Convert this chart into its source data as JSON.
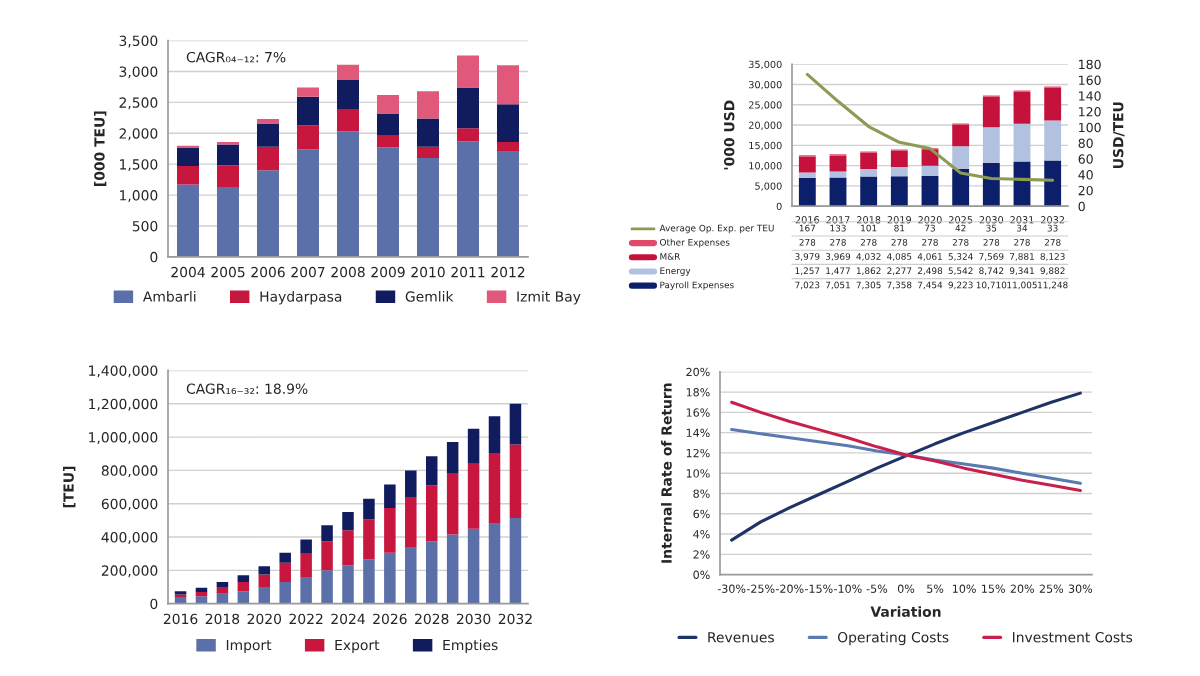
{
  "chart_data": [
    {
      "type": "bar",
      "stacked": true,
      "ylabel": "[000 TEU]",
      "annotations": [
        "CAGR₀₄₋₁₂: 7%"
      ],
      "grid": "y",
      "legend": "bottom",
      "categories": [
        "2004",
        "2005",
        "2006",
        "2007",
        "2008",
        "2009",
        "2010",
        "2011",
        "2012"
      ],
      "ylim": [
        0,
        3500
      ],
      "yticks": [
        0,
        500,
        {
          "value": 1000,
          "label": "1,000"
        },
        {
          "value": 1500,
          "label": "1,500"
        },
        {
          "value": 2000,
          "label": "2,000"
        },
        {
          "value": 2500,
          "label": "2,500"
        },
        {
          "value": 3000,
          "label": "3,000"
        },
        {
          "value": 3500,
          "label": "3,500"
        }
      ],
      "series": [
        {
          "name": "Ambarli",
          "color": "#5b6fa8",
          "values": [
            1170,
            1130,
            1400,
            1740,
            2030,
            1770,
            1600,
            1870,
            1700
          ]
        },
        {
          "name": "Haydarpasa",
          "color": "#c8173f",
          "values": [
            300,
            350,
            380,
            390,
            350,
            190,
            180,
            210,
            160
          ]
        },
        {
          "name": "Gemlik",
          "color": "#101c5e",
          "values": [
            300,
            340,
            380,
            460,
            480,
            360,
            460,
            660,
            610
          ]
        },
        {
          "name": "Izmit Bay",
          "color": "#e0587a",
          "values": [
            30,
            40,
            70,
            150,
            250,
            300,
            440,
            520,
            630
          ]
        }
      ]
    },
    {
      "type": "bar",
      "stacked": true,
      "ylabel": "'000 USD",
      "y2label": "USD/TEU",
      "grid": "y",
      "legend": "bottom",
      "categories": [
        "2016",
        "2017",
        "2018",
        "2019",
        "2020",
        "2025",
        "2030",
        "2031",
        "2032"
      ],
      "ylim": [
        0,
        35000
      ],
      "yticks": [
        0,
        {
          "value": 5000,
          "label": "5,000"
        },
        {
          "value": 10000,
          "label": "10,000"
        },
        {
          "value": 15000,
          "label": "15,000"
        },
        {
          "value": 20000,
          "label": "20,000"
        },
        {
          "value": 25000,
          "label": "25,000"
        },
        {
          "value": 30000,
          "label": "30,000"
        },
        {
          "value": 35000,
          "label": "35,000"
        }
      ],
      "y2lim": [
        0,
        180
      ],
      "y2ticks": [
        0,
        20,
        40,
        60,
        80,
        100,
        120,
        140,
        160,
        180
      ],
      "series": [
        {
          "name": "Payroll Expenses",
          "color": "#0c1f6b",
          "values": [
            7023,
            7051,
            7305,
            7358,
            7454,
            9223,
            10710,
            11005,
            11248
          ],
          "value_labels": [
            "7,023",
            "7,051",
            "7,305",
            "7,358",
            "7,454",
            "9,223",
            "10,710",
            "11,005",
            "11,248"
          ]
        },
        {
          "name": "Energy",
          "color": "#b3c1e0",
          "values": [
            1257,
            1477,
            1862,
            2277,
            2498,
            5542,
            8742,
            9341,
            9882
          ],
          "value_labels": [
            "1,257",
            "1,477",
            "1,862",
            "2,277",
            "2,498",
            "5,542",
            "8,742",
            "9,341",
            "9,882"
          ]
        },
        {
          "name": "M&R",
          "color": "#c4123c",
          "values": [
            3979,
            3969,
            4032,
            4085,
            4061,
            5324,
            7569,
            7881,
            8123
          ],
          "value_labels": [
            "3,979",
            "3,969",
            "4,032",
            "4,085",
            "4,061",
            "5,324",
            "7,569",
            "7,881",
            "8,123"
          ]
        },
        {
          "name": "Other Expenses",
          "color": "#e04a6a",
          "values": [
            278,
            278,
            278,
            278,
            278,
            278,
            278,
            278,
            278
          ],
          "value_labels": [
            "278",
            "278",
            "278",
            "278",
            "278",
            "278",
            "278",
            "278",
            "278"
          ]
        },
        {
          "name": "Average Op. Exp. per TEU",
          "type": "line",
          "axis": "y2",
          "color": "#8c9a52",
          "values": [
            167,
            133,
            101,
            81,
            73,
            42,
            35,
            34,
            33
          ],
          "value_labels": [
            "167",
            "133",
            "101",
            "81",
            "73",
            "42",
            "35",
            "34",
            "33"
          ]
        }
      ]
    },
    {
      "type": "bar",
      "stacked": true,
      "ylabel": "[TEU]",
      "annotations": [
        "CAGR₁₆₋₃₂: 18.9%"
      ],
      "grid": "y",
      "legend": "bottom",
      "x": [
        2016,
        2017,
        2018,
        2019,
        2020,
        2021,
        2022,
        2023,
        2024,
        2025,
        2026,
        2027,
        2028,
        2029,
        2030,
        2031,
        2032
      ],
      "xlim": [
        2015.4,
        2032.6
      ],
      "xticks": [
        2016,
        2018,
        2020,
        2022,
        2024,
        2026,
        2028,
        2030,
        2032
      ],
      "ylim": [
        0,
        1400000
      ],
      "yticks": [
        0,
        {
          "value": 200000,
          "label": "200,000"
        },
        {
          "value": 400000,
          "label": "400,000"
        },
        {
          "value": 600000,
          "label": "600,000"
        },
        {
          "value": 800000,
          "label": "800,000"
        },
        {
          "value": 1000000,
          "label": "1,000,000"
        },
        {
          "value": 1200000,
          "label": "1,200,000"
        },
        {
          "value": 1400000,
          "label": "1,400,000"
        }
      ],
      "series": [
        {
          "name": "Import",
          "color": "#5b6fa8",
          "values": [
            40000,
            45000,
            60000,
            75000,
            100000,
            130000,
            160000,
            200000,
            230000,
            265000,
            305000,
            340000,
            375000,
            415000,
            450000,
            480000,
            515000
          ]
        },
        {
          "name": "Export",
          "color": "#c8173f",
          "values": [
            15000,
            25000,
            40000,
            55000,
            75000,
            115000,
            140000,
            175000,
            210000,
            240000,
            270000,
            300000,
            335000,
            365000,
            390000,
            425000,
            440000
          ]
        },
        {
          "name": "Empties",
          "color": "#101c5e",
          "values": [
            20000,
            25000,
            30000,
            40000,
            50000,
            60000,
            85000,
            95000,
            110000,
            125000,
            140000,
            160000,
            175000,
            190000,
            210000,
            220000,
            245000
          ]
        }
      ]
    },
    {
      "type": "line",
      "xlabel": "Variation",
      "ylabel": "Internal Rate of Return",
      "grid": "y",
      "legend": "bottom",
      "marker": "none",
      "line_style": "solid",
      "x": [
        -30,
        -25,
        -20,
        -15,
        -10,
        -5,
        0,
        5,
        10,
        15,
        20,
        25,
        30
      ],
      "xlim": [
        -32,
        32
      ],
      "xticks": [
        {
          "value": -30,
          "label": "-30%"
        },
        {
          "value": -25,
          "label": "-25%"
        },
        {
          "value": -20,
          "label": "-20%"
        },
        {
          "value": -15,
          "label": "-15%"
        },
        {
          "value": -10,
          "label": "-10%"
        },
        {
          "value": -5,
          "label": "-5%"
        },
        {
          "value": 0,
          "label": "0%"
        },
        {
          "value": 5,
          "label": "5%"
        },
        {
          "value": 10,
          "label": "10%"
        },
        {
          "value": 15,
          "label": "15%"
        },
        {
          "value": 20,
          "label": "20%"
        },
        {
          "value": 25,
          "label": "25%"
        },
        {
          "value": 30,
          "label": "30%"
        }
      ],
      "ylim": [
        0,
        20
      ],
      "yticks": [
        {
          "value": 0,
          "label": "0%"
        },
        {
          "value": 2,
          "label": "2%"
        },
        {
          "value": 4,
          "label": "4%"
        },
        {
          "value": 6,
          "label": "6%"
        },
        {
          "value": 8,
          "label": "8%"
        },
        {
          "value": 10,
          "label": "10%"
        },
        {
          "value": 12,
          "label": "12%"
        },
        {
          "value": 14,
          "label": "14%"
        },
        {
          "value": 16,
          "label": "16%"
        },
        {
          "value": 18,
          "label": "18%"
        },
        {
          "value": 20,
          "label": "20%"
        }
      ],
      "series": [
        {
          "name": "Revenues",
          "color": "#1f3366",
          "values": [
            3.4,
            5.2,
            6.6,
            7.9,
            9.2,
            10.5,
            11.7,
            12.9,
            14.0,
            15.0,
            16.0,
            17.0,
            17.9
          ]
        },
        {
          "name": "Operating Costs",
          "color": "#5b7ab2",
          "values": [
            14.3,
            13.9,
            13.5,
            13.1,
            12.7,
            12.2,
            11.8,
            11.3,
            10.9,
            10.5,
            10.0,
            9.5,
            9.0
          ]
        },
        {
          "name": "Investment Costs",
          "color": "#c8204c",
          "values": [
            17.0,
            16.0,
            15.1,
            14.3,
            13.5,
            12.6,
            11.8,
            11.2,
            10.5,
            9.9,
            9.3,
            8.8,
            8.3
          ]
        }
      ]
    }
  ]
}
